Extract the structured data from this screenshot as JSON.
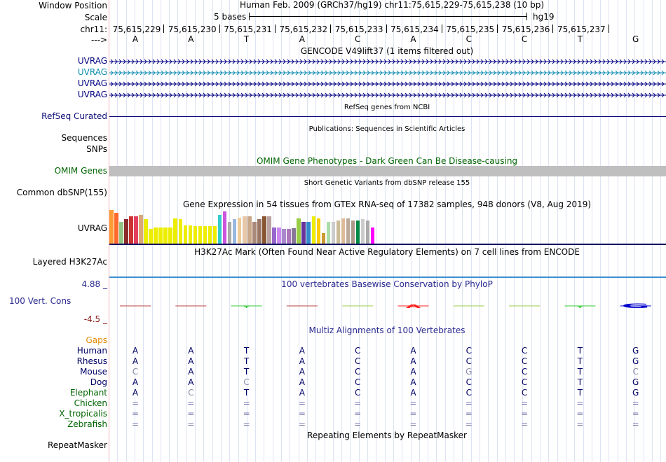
{
  "header": {
    "window_position_label": "Window Position",
    "scale_label": "Scale",
    "chrom_label": "chr11:",
    "strand_label": "--->",
    "assembly_text": "Human Feb. 2009 (GRCh37/hg19)   chr11:75,615,229-75,615,238 (10 bp)",
    "scale_text": "5 bases",
    "scale_db": "hg19",
    "positions": [
      "75,615,229",
      "75,615,230",
      "75,615,231",
      "75,615,232",
      "75,615,233",
      "75,615,234",
      "75,615,235",
      "75,615,236",
      "75,615,237"
    ],
    "bases": [
      "A",
      "A",
      "T",
      "A",
      "C",
      "A",
      "C",
      "C",
      "T",
      "G"
    ]
  },
  "tracks": {
    "gencode": {
      "title": "GENCODE V49lift37 (1 items filtered out)",
      "rows": [
        {
          "label": "UVRAG",
          "color": "#000080"
        },
        {
          "label": "UVRAG",
          "color": "#0c8bb0"
        },
        {
          "label": "UVRAG",
          "color": "#000080"
        },
        {
          "label": "UVRAG",
          "color": "#000080"
        }
      ]
    },
    "refseq": {
      "title": "RefSeq genes from NCBI",
      "label": "RefSeq Curated",
      "color": "#0c0c78"
    },
    "publications": {
      "title": "Publications: Sequences in Scientific Articles",
      "label": "Sequences"
    },
    "snps": {
      "label": "SNPs"
    },
    "omim": {
      "title": "OMIM Gene Phenotypes - Dark Green Can Be Disease-causing",
      "label": "OMIM Genes",
      "color": "#006400"
    },
    "dbsnp": {
      "title": "Short Genetic Variants from dbSNP release 155",
      "label": "Common dbSNP(155)"
    },
    "gtex": {
      "title": "Gene Expression in 54 tissues from GTEx RNA-seq of 17382 samples, 948 donors (V8, Aug 2019)",
      "label": "UVRAG",
      "levels": [
        1.0,
        0.91,
        0.65,
        0.73,
        0.82,
        0.82,
        0.85,
        0.72,
        0.43,
        0.48,
        0.48,
        0.48,
        0.48,
        0.76,
        0.72,
        0.55,
        0.55,
        0.53,
        0.53,
        0.53,
        0.53,
        0.53,
        0.85,
        0.96,
        0.65,
        0.73,
        0.78,
        0.81,
        0.81,
        0.65,
        0.72,
        0.81,
        0.81,
        0.48,
        0.48,
        0.43,
        0.43,
        0.45,
        0.76,
        0.65,
        0.65,
        0.81,
        0.76,
        0.32,
        0.65,
        0.65,
        0.69,
        0.75,
        0.75,
        0.69,
        0.69,
        0.73,
        0.69,
        0.48
      ],
      "colors": [
        "#ff9c35",
        "#ff6a2c",
        "#92c585",
        "#8b2a2a",
        "#cc3333",
        "#e3405f",
        "#d9a878",
        "#eded00",
        "#eded00",
        "#eded00",
        "#eded00",
        "#eded00",
        "#eded00",
        "#eded00",
        "#eded00",
        "#eded00",
        "#eded00",
        "#eded00",
        "#eded00",
        "#eded00",
        "#eded00",
        "#eded00",
        "#33cccc",
        "#cc55dd",
        "#aaaaaa",
        "#99b8e0",
        "#eecc99",
        "#e6c8a8",
        "#c8a888",
        "#aa8877",
        "#997766",
        "#885533",
        "#b8a3a3",
        "#9966cc",
        "#cc88ee",
        "#aa88cc",
        "#aa77bb",
        "#887799",
        "#99cc44",
        "#663399",
        "#3388cc",
        "#eeee00",
        "#ffcc00",
        "#cc9933",
        "#aaddaa",
        "#cccccc",
        "#ccbb99",
        "#ddbb99",
        "#bbaa99",
        "#aa9988",
        "#008844",
        "#cccccc",
        "#aaaaaa",
        "#ff00ff"
      ]
    },
    "h3k27ac": {
      "title": "H3K27Ac Mark (Often Found Near Active Regulatory Elements) on 7 cell lines from ENCODE",
      "label": "Layered H3K27Ac"
    },
    "phylop": {
      "title": "100 vertebrates Basewise Conservation by PhyloP",
      "label": "100 Vert. Cons",
      "max_label": "4.88 _",
      "min_label": "-4.5 _",
      "scores": [
        -0.3,
        -0.3,
        0.6,
        -0.3,
        0.2,
        1.5,
        0.2,
        0.2,
        0.6,
        2.3
      ]
    },
    "multiz": {
      "title": "Multiz Alignments of 100 Vertebrates",
      "gaps_label": "Gaps",
      "species": [
        {
          "name": "Human",
          "color": "#000066",
          "bases": [
            "A",
            "A",
            "T",
            "A",
            "C",
            "A",
            "C",
            "C",
            "T",
            "G"
          ]
        },
        {
          "name": "Rhesus",
          "color": "#000066",
          "bases": [
            "A",
            "A",
            "T",
            "A",
            "C",
            "A",
            "C",
            "C",
            "T",
            "G"
          ]
        },
        {
          "name": "Mouse",
          "color": "#000066",
          "bases": [
            "C",
            "A",
            "T",
            "A",
            "C",
            "A",
            "G",
            "C",
            "T",
            "C"
          ]
        },
        {
          "name": "Dog",
          "color": "#000066",
          "bases": [
            "A",
            "A",
            "C",
            "A",
            "C",
            "A",
            "C",
            "C",
            "T",
            "G"
          ]
        },
        {
          "name": "Elephant",
          "color": "#006400",
          "bases": [
            "A",
            "C",
            "T",
            "A",
            "C",
            "A",
            "C",
            "C",
            "T",
            "G"
          ]
        },
        {
          "name": "Chicken",
          "color": "#006400",
          "bases": [
            "=",
            "=",
            "=",
            "=",
            "=",
            "=",
            "=",
            "=",
            "=",
            "="
          ]
        },
        {
          "name": "X_tropicalis",
          "color": "#006400",
          "bases": [
            "=",
            "=",
            "=",
            "=",
            "=",
            "=",
            "=",
            "=",
            "=",
            "="
          ]
        },
        {
          "name": "Zebrafish",
          "color": "#006400",
          "bases": [
            "=",
            "=",
            "=",
            "=",
            "=",
            "=",
            "=",
            "=",
            "=",
            "="
          ]
        }
      ]
    },
    "repeatmasker": {
      "title": "Repeating Elements by RepeatMasker",
      "label": "RepeatMasker"
    }
  }
}
